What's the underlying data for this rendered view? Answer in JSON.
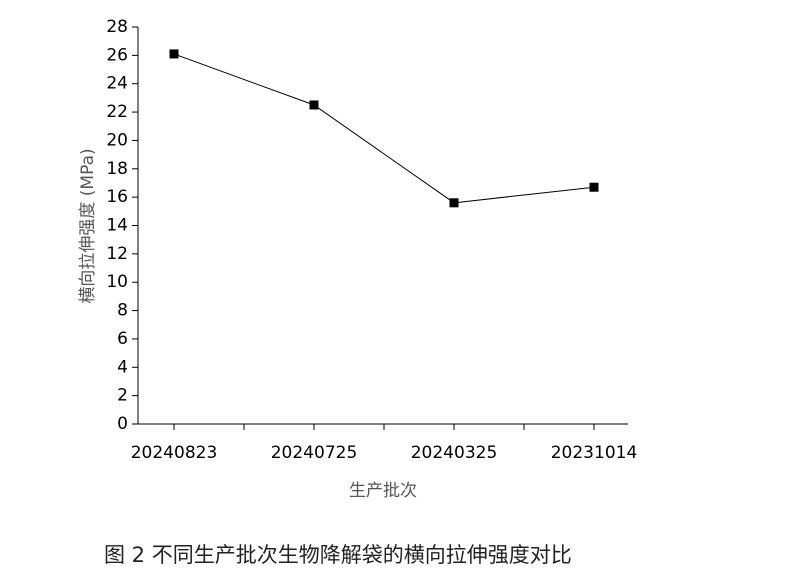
{
  "chart_data": {
    "type": "line",
    "categories": [
      "20240823",
      "20240725",
      "20240325",
      "20231014"
    ],
    "values": [
      26.1,
      22.5,
      15.6,
      16.7
    ],
    "color": "#000000",
    "ylim": [
      0,
      28
    ],
    "yticks": [
      0,
      2,
      4,
      6,
      8,
      10,
      12,
      14,
      16,
      18,
      20,
      22,
      24,
      26,
      28
    ],
    "xlabel": "生产批次",
    "ylabel": "横向拉伸强度 (MPa)",
    "caption": "图 2  不同生产批次生物降解袋的横向拉伸强度对比"
  }
}
